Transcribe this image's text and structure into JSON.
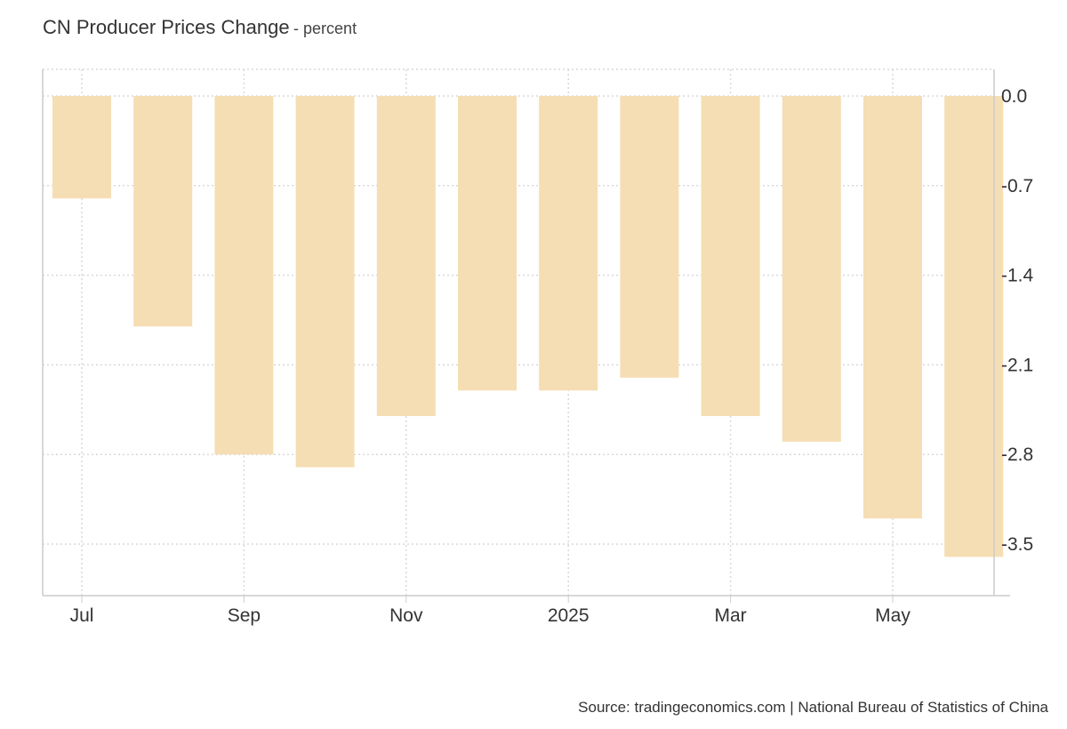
{
  "chart_data": {
    "type": "bar",
    "title": "CN Producer Prices Change",
    "subtitle": "percent",
    "categories": [
      "2024-07",
      "2024-08",
      "2024-09",
      "2024-10",
      "2024-11",
      "2024-12",
      "2025-01",
      "2025-02",
      "2025-03",
      "2025-04",
      "2025-05",
      "2025-06"
    ],
    "x_tick_labels": [
      {
        "category": "2024-07",
        "label": "Jul"
      },
      {
        "category": "2024-09",
        "label": "Sep"
      },
      {
        "category": "2024-11",
        "label": "Nov"
      },
      {
        "category": "2025-01",
        "label": "2025"
      },
      {
        "category": "2025-03",
        "label": "Mar"
      },
      {
        "category": "2025-05",
        "label": "May"
      }
    ],
    "series": [
      {
        "values": [
          -0.8,
          -1.8,
          -2.8,
          -2.9,
          -2.5,
          -2.3,
          -2.3,
          -2.2,
          -2.5,
          -2.7,
          -3.3,
          -3.6
        ]
      }
    ],
    "ylim": [
      -3.9,
      0.2
    ],
    "y_ticks": [
      0.0,
      -0.7,
      -1.4,
      -2.1,
      -2.8,
      -3.5
    ],
    "y_tick_labels": [
      "0.0",
      "-0.7",
      "-1.4",
      "-2.1",
      "-2.8",
      "-3.5"
    ],
    "y_axis_position": "right",
    "grid": true,
    "bar_color": "#f5deb3",
    "grid_color": "#d9d9d9",
    "axis_color": "#cccccc"
  },
  "source": "Source: tradingeconomics.com | National Bureau of Statistics of China"
}
